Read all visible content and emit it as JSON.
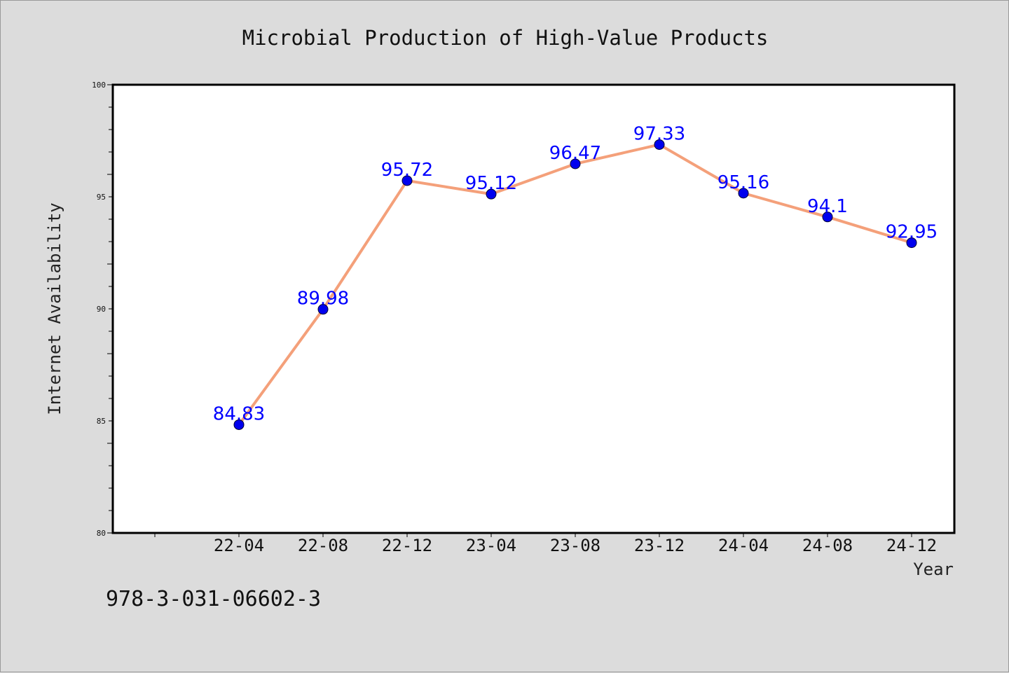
{
  "chart_data": {
    "type": "line",
    "title": "Microbial Production of High-Value Products",
    "xlabel": "Year",
    "ylabel": "Internet Availability",
    "categories": [
      "22-04",
      "22-08",
      "22-12",
      "23-04",
      "23-08",
      "23-12",
      "24-04",
      "24-08",
      "24-12"
    ],
    "series": [
      {
        "values": [
          84.83,
          89.98,
          95.72,
          95.12,
          96.47,
          97.33,
          95.16,
          94.1,
          92.95
        ],
        "labels": [
          "84.83",
          "89.98",
          "95.72",
          "95.12",
          "96.47",
          "97.33",
          "95.16",
          "94.1",
          "92.95"
        ],
        "line_color": "#f4a07a",
        "marker_color": "#0000ee"
      }
    ],
    "ylim": [
      80,
      100
    ],
    "yticks": [
      "80",
      "85",
      "90",
      "95",
      "100"
    ],
    "grid": false,
    "legend": "none"
  },
  "footer_text": "978-3-031-06602-3"
}
